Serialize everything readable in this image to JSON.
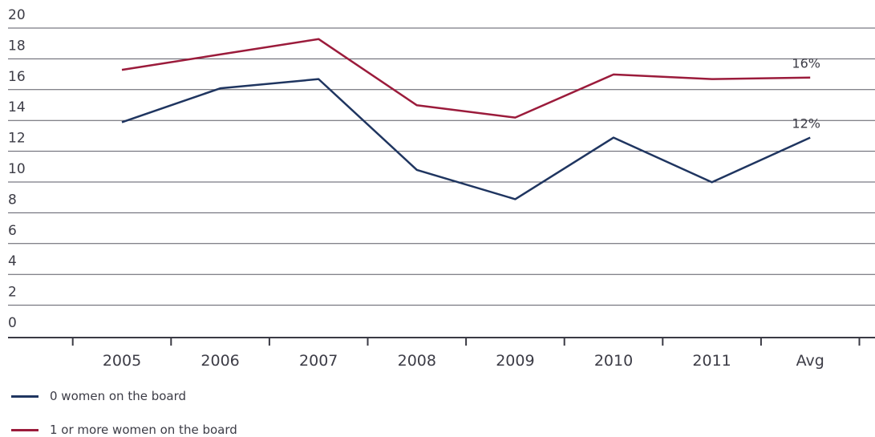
{
  "chart_data": {
    "type": "line",
    "categories": [
      "2005",
      "2006",
      "2007",
      "2008",
      "2009",
      "2010",
      "2011",
      "Avg"
    ],
    "ylim": [
      0,
      20
    ],
    "yticks": [
      "0",
      "2",
      "4",
      "6",
      "8",
      "10",
      "12",
      "14",
      "16",
      "18",
      "20"
    ],
    "grid": true,
    "legend_position": "bottom-left",
    "series": [
      {
        "name": "0 women on the board",
        "color": "#1f3560",
        "values": [
          13.0,
          15.2,
          15.8,
          9.9,
          8.0,
          12.0,
          9.1,
          12.0
        ],
        "end_label": "12%"
      },
      {
        "name": "1 or more women on the board",
        "color": "#9b1b3b",
        "values": [
          16.4,
          17.4,
          18.4,
          14.1,
          13.3,
          16.1,
          15.8,
          15.9
        ],
        "end_label": "16%"
      }
    ]
  }
}
